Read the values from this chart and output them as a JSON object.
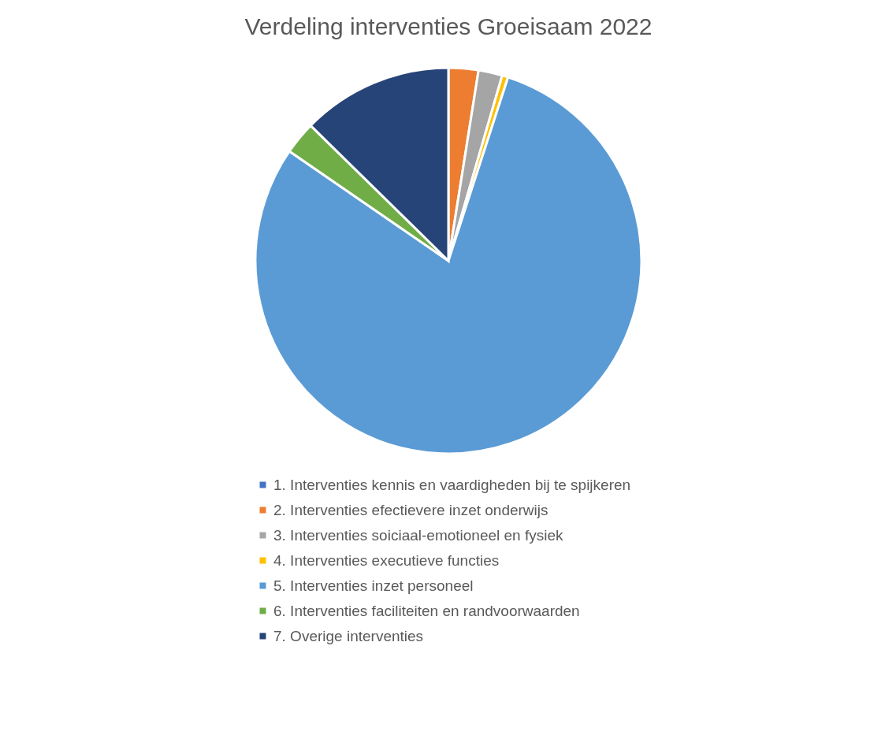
{
  "chart_data": {
    "type": "pie",
    "title": "Verdeling interventies Groeisaam 2022",
    "categories": [
      "1. Interventies kennis en vaardigheden bij  te spijkeren",
      "2. Interventies efectievere inzet onderwijs",
      "3. Interventies soiciaal-emotioneel en fysiek",
      "4. Interventies executieve functies",
      "5. Interventies inzet personeel",
      "6. Interventies faciliteiten en randvoorwaarden",
      "7. Overige interventies"
    ],
    "values": [
      0,
      2.5,
      2,
      0.5,
      79.6,
      2.75,
      12.65
    ],
    "colors": [
      "#4472c4",
      "#ed7d31",
      "#a5a5a5",
      "#ffc000",
      "#5b9bd5",
      "#70ad47",
      "#264478"
    ],
    "legend": "bottom"
  }
}
